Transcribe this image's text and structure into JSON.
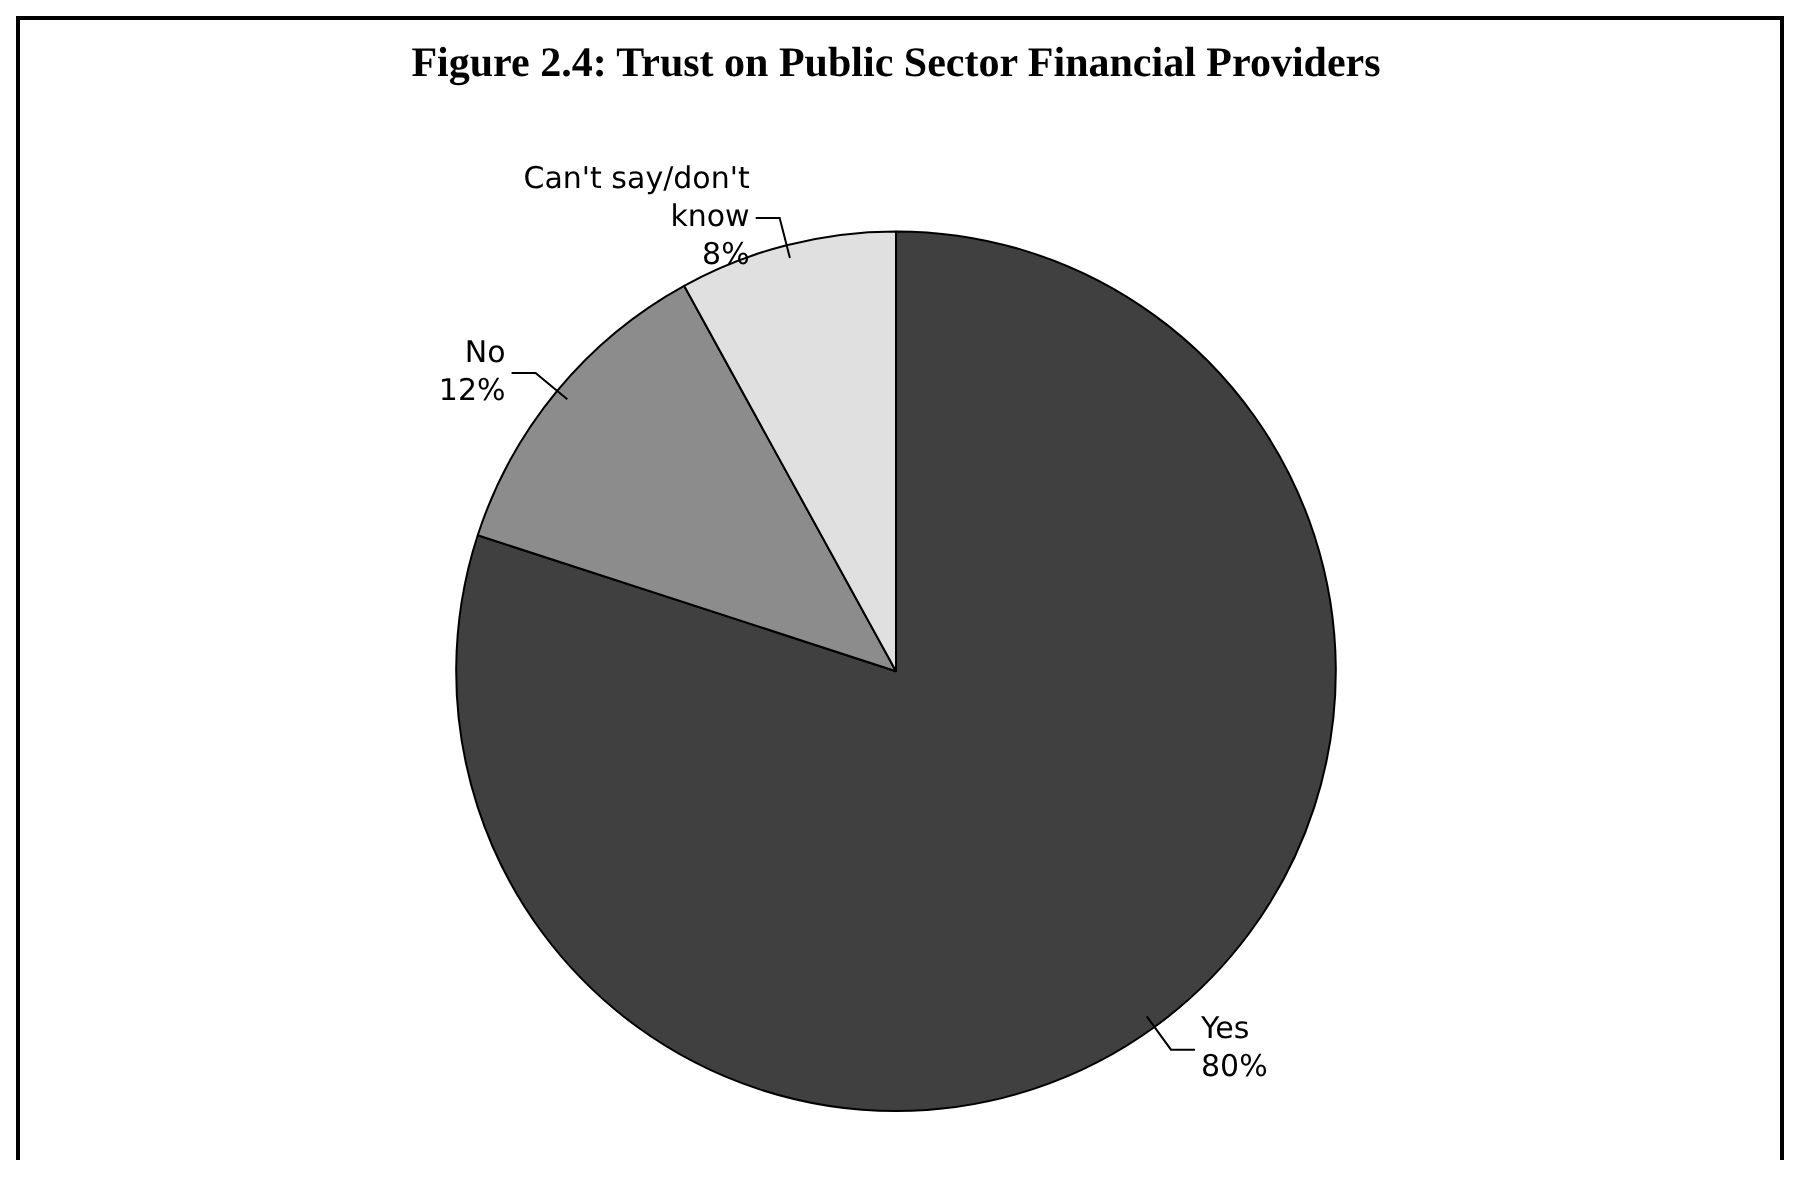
{
  "chart_data": {
    "type": "pie",
    "title": "Figure 2.4: Trust on Public Sector Financial Providers",
    "categories": [
      "Yes",
      "No",
      "Can't say/don't know"
    ],
    "values": [
      80,
      12,
      8
    ],
    "colors": [
      "#404040",
      "#8c8c8c",
      "#e0e0e0"
    ],
    "value_labels": [
      "80%",
      "12%",
      "8%"
    ],
    "legend": false
  }
}
